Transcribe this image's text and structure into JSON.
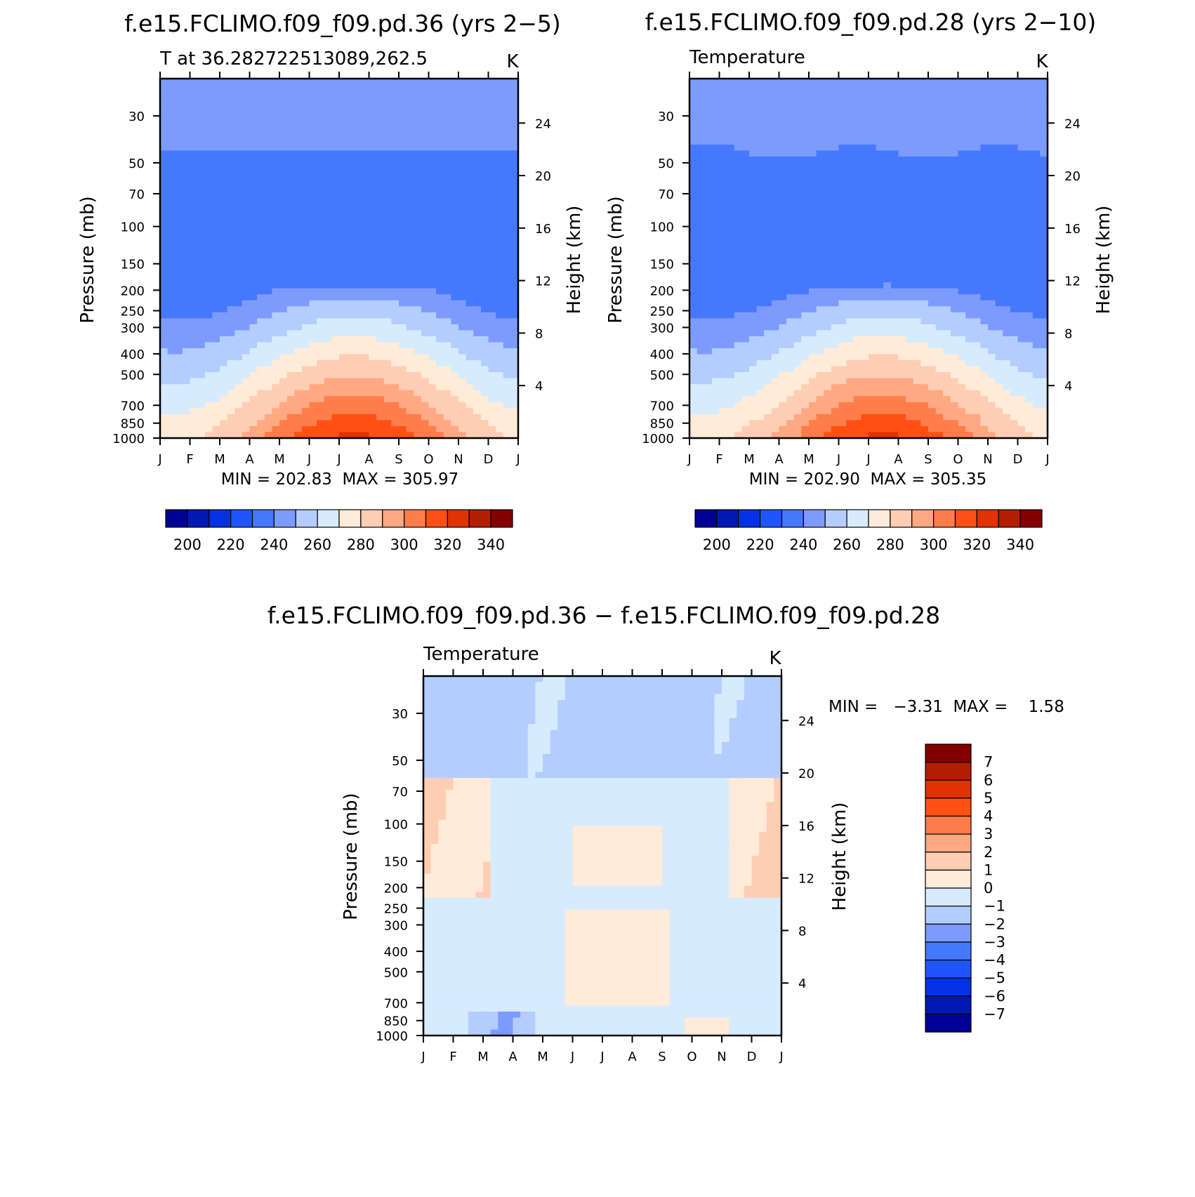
{
  "chart_data": [
    {
      "type": "contour",
      "title": "f.e15.FCLIMO.f09_f09.pd.36 (yrs 2−5)",
      "left_label": "T at 36.282722513089,262.5",
      "units": "K",
      "xlabel": "",
      "ylabel": "Pressure (mb)",
      "y2label": "Height (km)",
      "x_ticks": [
        "J",
        "F",
        "M",
        "A",
        "M",
        "J",
        "J",
        "A",
        "S",
        "O",
        "N",
        "D",
        "J"
      ],
      "y_ticks": [
        "30",
        "50",
        "70",
        "100",
        "150",
        "200",
        "250",
        "300",
        "400",
        "500",
        "700",
        "850",
        "1000"
      ],
      "y2_ticks": [
        "24",
        "20",
        "16",
        "12",
        "8",
        "4"
      ],
      "stats": "MIN = 202.83  MAX = 305.97",
      "min": 202.83,
      "max": 305.97,
      "colorbar_ticks": [
        "200",
        "220",
        "240",
        "260",
        "280",
        "300",
        "320",
        "340"
      ],
      "contour_levels": [
        190,
        200,
        210,
        220,
        230,
        240,
        250,
        260,
        270,
        280,
        290,
        300
      ],
      "ylim": [
        1000,
        20
      ]
    },
    {
      "type": "contour",
      "title": "f.e15.FCLIMO.f09_f09.pd.28 (yrs 2−10)",
      "left_label": "Temperature",
      "units": "K",
      "xlabel": "",
      "ylabel": "Pressure (mb)",
      "y2label": "Height (km)",
      "x_ticks": [
        "J",
        "F",
        "M",
        "A",
        "M",
        "J",
        "J",
        "A",
        "S",
        "O",
        "N",
        "D",
        "J"
      ],
      "y_ticks": [
        "30",
        "50",
        "70",
        "100",
        "150",
        "200",
        "250",
        "300",
        "400",
        "500",
        "700",
        "850",
        "1000"
      ],
      "y2_ticks": [
        "24",
        "20",
        "16",
        "12",
        "8",
        "4"
      ],
      "stats": "MIN = 202.90  MAX = 305.35",
      "min": 202.9,
      "max": 305.35,
      "colorbar_ticks": [
        "200",
        "220",
        "240",
        "260",
        "280",
        "300",
        "320",
        "340"
      ],
      "contour_levels": [
        190,
        200,
        210,
        220,
        230,
        240,
        250,
        260,
        270,
        280,
        290,
        300
      ],
      "ylim": [
        1000,
        20
      ]
    },
    {
      "type": "contour",
      "title": "f.e15.FCLIMO.f09_f09.pd.36 − f.e15.FCLIMO.f09_f09.pd.28",
      "left_label": "Temperature",
      "units": "K",
      "xlabel": "",
      "ylabel": "Pressure (mb)",
      "y2label": "Height (km)",
      "x_ticks": [
        "J",
        "F",
        "M",
        "A",
        "M",
        "J",
        "J",
        "A",
        "S",
        "O",
        "N",
        "D",
        "J"
      ],
      "y_ticks": [
        "30",
        "50",
        "70",
        "100",
        "150",
        "200",
        "250",
        "300",
        "400",
        "500",
        "700",
        "850",
        "1000"
      ],
      "y2_ticks": [
        "24",
        "20",
        "16",
        "12",
        "8",
        "4"
      ],
      "stats": "MIN =   −3.31  MAX =    1.58",
      "min": -3.31,
      "max": 1.58,
      "colorbar_ticks": [
        "7",
        "6",
        "5",
        "4",
        "3",
        "2",
        "1",
        "0",
        "−1",
        "−2",
        "−3",
        "−4",
        "−5",
        "−6",
        "−7"
      ],
      "contour_levels": [
        -7,
        -6,
        -5,
        -4,
        -3,
        -2,
        -1,
        0,
        1,
        2,
        3,
        4,
        5,
        6,
        7
      ],
      "ylim": [
        1000,
        20
      ]
    }
  ],
  "colors": {
    "temperature_palette": [
      "#000096",
      "#0019B4",
      "#0532E6",
      "#1E55FF",
      "#4678FF",
      "#7D9BFF",
      "#B4CDFF",
      "#D7EBFF",
      "#FFEBD7",
      "#FFCDB4",
      "#FFA882",
      "#FF7D4B",
      "#FF5014",
      "#E13200",
      "#B41E00",
      "#820000"
    ],
    "difference_palette": [
      "#000096",
      "#0019B4",
      "#0532E6",
      "#1E55FF",
      "#4678FF",
      "#7D9BFF",
      "#B4CDFF",
      "#D7EBFF",
      "#FFEBD7",
      "#FFCDB4",
      "#FFA882",
      "#FF7D4B",
      "#FF5014",
      "#E13200",
      "#B41E00",
      "#820000"
    ]
  }
}
